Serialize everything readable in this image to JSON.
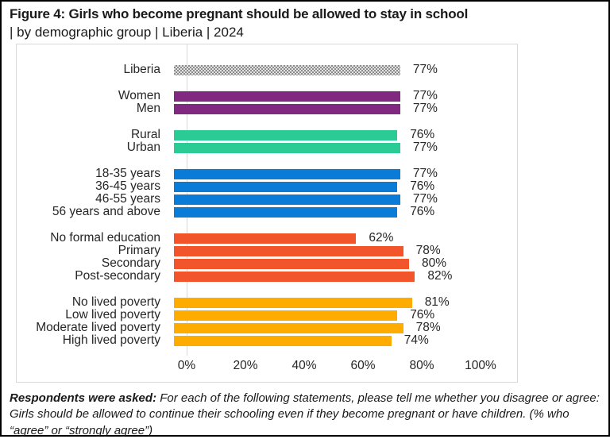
{
  "title": {
    "line1": "Figure 4: Girls who become pregnant should be allowed to stay in school",
    "line2": "| by demographic group | Liberia | 2024"
  },
  "chart_data": {
    "type": "bar",
    "orientation": "horizontal",
    "unit": "%",
    "title": "Girls who become pregnant should be allowed to stay in school | by demographic group | Liberia | 2024",
    "xlabel": "",
    "ylabel": "",
    "xlim": [
      0,
      100
    ],
    "grid": false,
    "axis_ticks": [
      {
        "label": "0%",
        "value": 0
      },
      {
        "label": "20%",
        "value": 20
      },
      {
        "label": "40%",
        "value": 40
      },
      {
        "label": "60%",
        "value": 60
      },
      {
        "label": "80%",
        "value": 80
      },
      {
        "label": "100%",
        "value": 100
      }
    ],
    "groups": [
      {
        "name": "national",
        "color": "#8b8b8b",
        "pattern": "checkerboard-gray",
        "bars": [
          {
            "label": "Liberia",
            "value": 77
          }
        ]
      },
      {
        "name": "gender",
        "color": "#812980",
        "bars": [
          {
            "label": "Women",
            "value": 77
          },
          {
            "label": "Men",
            "value": 77
          }
        ]
      },
      {
        "name": "location",
        "color": "#2bcb95",
        "bars": [
          {
            "label": "Rural",
            "value": 76
          },
          {
            "label": "Urban",
            "value": 77
          }
        ]
      },
      {
        "name": "age",
        "color": "#0a7bd6",
        "bars": [
          {
            "label": "18-35 years",
            "value": 77
          },
          {
            "label": "36-45 years",
            "value": 76
          },
          {
            "label": "46-55 years",
            "value": 77
          },
          {
            "label": "56 years and above",
            "value": 76
          }
        ]
      },
      {
        "name": "education",
        "color": "#f2542b",
        "bars": [
          {
            "label": "No formal education",
            "value": 62
          },
          {
            "label": "Primary",
            "value": 78
          },
          {
            "label": "Secondary",
            "value": 80
          },
          {
            "label": "Post-secondary",
            "value": 82
          }
        ]
      },
      {
        "name": "lived-poverty",
        "color": "#ffac00",
        "bars": [
          {
            "label": "No lived poverty",
            "value": 81
          },
          {
            "label": "Low lived poverty",
            "value": 76
          },
          {
            "label": "Moderate lived poverty",
            "value": 78
          },
          {
            "label": "High lived poverty",
            "value": 74
          }
        ]
      }
    ]
  },
  "footer": {
    "lead": "Respondents were asked:",
    "text": "For each of the following statements, please tell me whether you disagree or agree: Girls should be allowed to continue their schooling even if they become pregnant or have children. (% who “agree” or “strongly agree”)"
  }
}
